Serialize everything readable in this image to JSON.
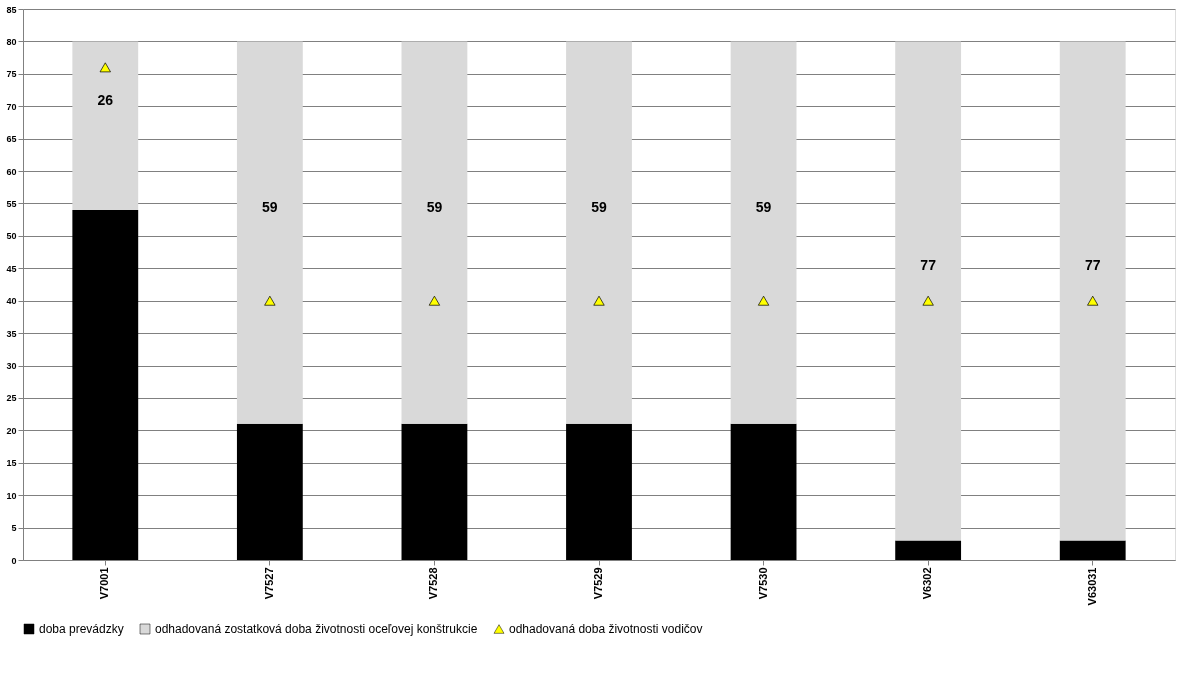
{
  "chart_data": {
    "type": "bar",
    "stacked": true,
    "categories": [
      "V7001",
      "V7527",
      "V7528",
      "V7529",
      "V7530",
      "V6302",
      "V63031"
    ],
    "series": [
      {
        "name": "doba prevádzky",
        "color": "#000000",
        "values": [
          54,
          21,
          21,
          21,
          21,
          3,
          3
        ]
      },
      {
        "name": "odhadovaná zostatková doba životnosti oceľovej konštrukcie",
        "color": "#d9d9d9",
        "values": [
          26,
          59,
          59,
          59,
          59,
          77,
          77
        ],
        "value_labels": [
          "26",
          "59",
          "59",
          "59",
          "59",
          "77",
          "77"
        ]
      },
      {
        "name": "odhadovaná doba životnosti vodičov",
        "type": "scatter",
        "marker": "triangle",
        "color": "#ffff00",
        "values": [
          76,
          40,
          40,
          40,
          40,
          40,
          40
        ]
      }
    ],
    "ylim": [
      0,
      85
    ],
    "yticks": [
      0,
      5,
      10,
      15,
      20,
      25,
      30,
      35,
      40,
      45,
      50,
      55,
      60,
      65,
      70,
      75,
      80,
      85
    ],
    "grid": "y",
    "legend": "bottom"
  }
}
